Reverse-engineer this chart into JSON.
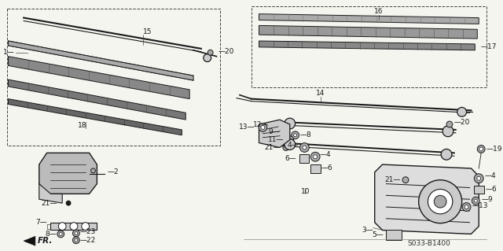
{
  "bg_color": "#f5f5f0",
  "fig_width": 6.4,
  "fig_height": 3.19,
  "dpi": 100,
  "code": "S033-B1400",
  "fr_label": "FR."
}
